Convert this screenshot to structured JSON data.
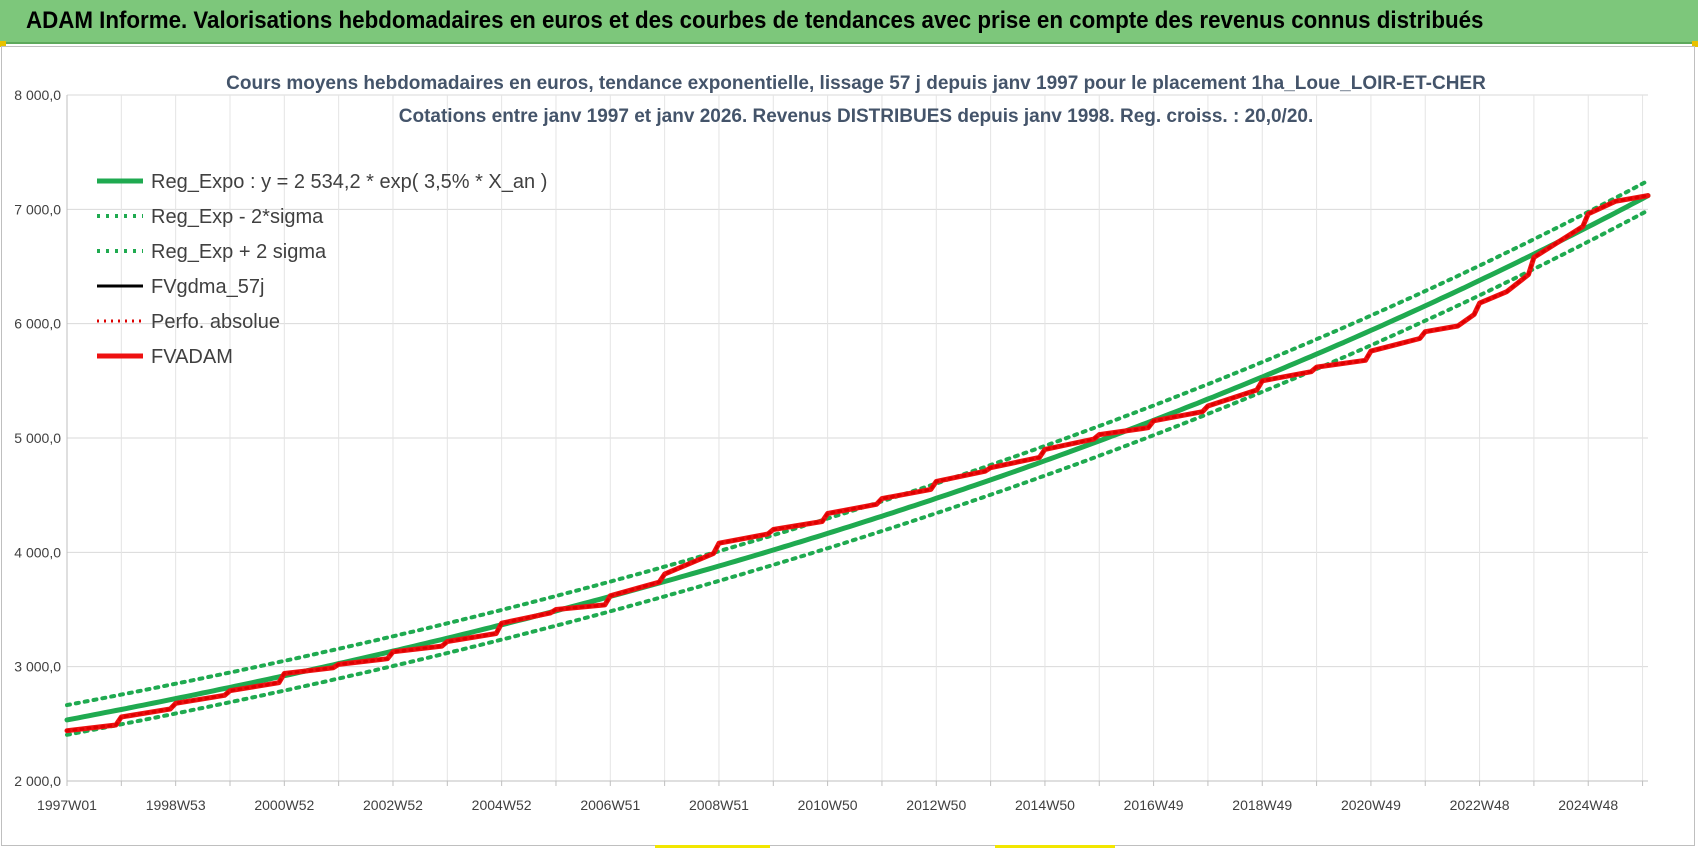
{
  "header": {
    "title": "ADAM Informe. Valorisations hebdomadaires en euros et des courbes de tendances avec prise en compte des revenus connus distribués"
  },
  "colors": {
    "banner": "#7dc77b",
    "reg_expo": "#1faa50",
    "fvadam": "#ee1111",
    "fvgdma": "#000000",
    "perfo": "#dd0000"
  },
  "chart_data": {
    "type": "line",
    "title_line1": "Cours moyens hebdomadaires en euros, tendance exponentielle, lissage 57 j depuis janv 1997  pour le placement 1ha_Loue_LOIR-ET-CHER",
    "title_line2": "Cotations entre janv 1997 et janv 2026. Revenus DISTRIBUES depuis janv 1998.  Reg. croiss. : 20,0/20.",
    "xlabel": "",
    "ylabel": "",
    "ylim": [
      2000,
      8000
    ],
    "xlim": [
      1997.0,
      2026.1
    ],
    "grid": true,
    "yticks": [
      {
        "value": 2000,
        "label": "2 000,0"
      },
      {
        "value": 3000,
        "label": "3 000,0"
      },
      {
        "value": 4000,
        "label": "4 000,0"
      },
      {
        "value": 5000,
        "label": "5 000,0"
      },
      {
        "value": 6000,
        "label": "6 000,0"
      },
      {
        "value": 7000,
        "label": "7 000,0"
      },
      {
        "value": 8000,
        "label": "8 000,0"
      }
    ],
    "xticks": [
      {
        "value": 1997.0,
        "label": "1997W01"
      },
      {
        "value": 1999.0,
        "label": "1998W53"
      },
      {
        "value": 2001.0,
        "label": "2000W52"
      },
      {
        "value": 2003.0,
        "label": "2002W52"
      },
      {
        "value": 2005.0,
        "label": "2004W52"
      },
      {
        "value": 2007.0,
        "label": "2006W51"
      },
      {
        "value": 2009.0,
        "label": "2008W51"
      },
      {
        "value": 2011.0,
        "label": "2010W50"
      },
      {
        "value": 2013.0,
        "label": "2012W50"
      },
      {
        "value": 2015.0,
        "label": "2014W50"
      },
      {
        "value": 2017.0,
        "label": "2016W49"
      },
      {
        "value": 2019.0,
        "label": "2018W49"
      },
      {
        "value": 2021.0,
        "label": "2020W49"
      },
      {
        "value": 2023.0,
        "label": "2022W48"
      },
      {
        "value": 2025.0,
        "label": "2024W48"
      }
    ],
    "minor_xticks": [
      1998,
      2000,
      2002,
      2004,
      2006,
      2008,
      2010,
      2012,
      2014,
      2016,
      2018,
      2020,
      2022,
      2024,
      2026
    ],
    "legend_position": "top-left",
    "series": [
      {
        "name": "Reg_Expo : y = 2 534,2 * exp( 3,5% *  X_an )",
        "style": "solid-green",
        "formula": {
          "a": 2534.2,
          "r": 0.0355,
          "offset": 0
        }
      },
      {
        "name": "Reg_Exp - 2*sigma",
        "style": "dotted-green",
        "formula": {
          "a": 2534.2,
          "r": 0.0355,
          "offset": -130
        }
      },
      {
        "name": "Reg_Exp + 2 sigma",
        "style": "dotted-green",
        "formula": {
          "a": 2534.2,
          "r": 0.0355,
          "offset": 130
        }
      },
      {
        "name": "FVgdma_57j",
        "style": "solid-black",
        "x": [
          1997.0,
          1997.9,
          1998.0,
          1998.9,
          1999.0,
          1999.9,
          2000.0,
          2000.9,
          2001.0,
          2001.9,
          2002.0,
          2002.9,
          2003.0,
          2003.9,
          2004.0,
          2004.9,
          2005.0,
          2005.9,
          2006.0,
          2006.9,
          2007.0,
          2007.9,
          2008.0,
          2008.9,
          2009.0,
          2009.9,
          2010.0,
          2010.9,
          2011.0,
          2011.9,
          2012.0,
          2012.9,
          2013.0,
          2013.9,
          2014.0,
          2014.9,
          2015.0,
          2015.9,
          2016.0,
          2016.9,
          2017.0,
          2017.9,
          2018.0,
          2018.9,
          2019.0,
          2019.9,
          2020.0,
          2020.9,
          2021.0,
          2021.9,
          2022.0,
          2022.6,
          2022.9,
          2023.0,
          2023.5,
          2023.9,
          2024.0,
          2024.5,
          2024.9,
          2025.0,
          2025.5,
          2026.1
        ],
        "values": [
          2440,
          2490,
          2560,
          2630,
          2680,
          2750,
          2790,
          2860,
          2940,
          2990,
          3020,
          3070,
          3130,
          3180,
          3220,
          3290,
          3380,
          3470,
          3500,
          3540,
          3620,
          3740,
          3810,
          3990,
          4080,
          4160,
          4200,
          4270,
          4340,
          4420,
          4470,
          4550,
          4620,
          4710,
          4740,
          4830,
          4900,
          4990,
          5030,
          5090,
          5150,
          5230,
          5280,
          5420,
          5500,
          5580,
          5620,
          5680,
          5760,
          5870,
          5930,
          5980,
          6080,
          6180,
          6280,
          6430,
          6580,
          6730,
          6850,
          6960,
          7070,
          7120
        ]
      },
      {
        "name": "Perfo. absolue",
        "style": "dotted-red",
        "x": [
          1997.0,
          1997.9,
          1998.0,
          1998.9,
          1999.0,
          1999.9,
          2000.0,
          2000.9,
          2001.0,
          2001.9,
          2002.0,
          2002.9,
          2003.0,
          2003.9,
          2004.0,
          2004.9,
          2005.0,
          2005.9,
          2006.0,
          2006.9,
          2007.0,
          2007.9,
          2008.0,
          2008.9,
          2009.0,
          2009.9,
          2010.0,
          2010.9,
          2011.0,
          2011.9,
          2012.0,
          2012.9,
          2013.0,
          2013.9,
          2014.0,
          2014.9,
          2015.0,
          2015.9,
          2016.0,
          2016.9,
          2017.0,
          2017.9,
          2018.0,
          2018.9,
          2019.0,
          2019.9,
          2020.0,
          2020.9,
          2021.0,
          2021.9,
          2022.0,
          2022.6,
          2022.9,
          2023.0,
          2023.5,
          2023.9,
          2024.0,
          2024.5,
          2024.9,
          2025.0,
          2025.5,
          2026.1
        ],
        "values": [
          2440,
          2490,
          2560,
          2630,
          2680,
          2750,
          2790,
          2860,
          2940,
          2990,
          3020,
          3070,
          3130,
          3180,
          3220,
          3290,
          3380,
          3470,
          3500,
          3540,
          3620,
          3740,
          3810,
          3990,
          4080,
          4160,
          4200,
          4270,
          4340,
          4420,
          4470,
          4550,
          4620,
          4710,
          4740,
          4830,
          4900,
          4990,
          5030,
          5090,
          5150,
          5230,
          5280,
          5420,
          5500,
          5580,
          5620,
          5680,
          5760,
          5870,
          5930,
          5980,
          6080,
          6180,
          6280,
          6430,
          6580,
          6730,
          6850,
          6960,
          7070,
          7120
        ]
      },
      {
        "name": "FVADAM",
        "style": "solid-red",
        "x": [
          1997.0,
          1997.9,
          1998.0,
          1998.9,
          1999.0,
          1999.9,
          2000.0,
          2000.9,
          2001.0,
          2001.9,
          2002.0,
          2002.9,
          2003.0,
          2003.9,
          2004.0,
          2004.9,
          2005.0,
          2005.9,
          2006.0,
          2006.9,
          2007.0,
          2007.9,
          2008.0,
          2008.9,
          2009.0,
          2009.9,
          2010.0,
          2010.9,
          2011.0,
          2011.9,
          2012.0,
          2012.9,
          2013.0,
          2013.9,
          2014.0,
          2014.9,
          2015.0,
          2015.9,
          2016.0,
          2016.9,
          2017.0,
          2017.9,
          2018.0,
          2018.9,
          2019.0,
          2019.9,
          2020.0,
          2020.9,
          2021.0,
          2021.9,
          2022.0,
          2022.6,
          2022.9,
          2023.0,
          2023.5,
          2023.9,
          2024.0,
          2024.5,
          2024.9,
          2025.0,
          2025.5,
          2026.1
        ],
        "values": [
          2440,
          2490,
          2560,
          2630,
          2680,
          2750,
          2790,
          2860,
          2940,
          2990,
          3020,
          3070,
          3130,
          3180,
          3220,
          3290,
          3380,
          3470,
          3500,
          3540,
          3620,
          3740,
          3810,
          3990,
          4080,
          4160,
          4200,
          4270,
          4340,
          4420,
          4470,
          4550,
          4620,
          4710,
          4740,
          4830,
          4900,
          4990,
          5030,
          5090,
          5150,
          5230,
          5280,
          5420,
          5500,
          5580,
          5620,
          5680,
          5760,
          5870,
          5930,
          5980,
          6080,
          6180,
          6280,
          6430,
          6580,
          6730,
          6850,
          6960,
          7070,
          7120
        ]
      }
    ]
  }
}
